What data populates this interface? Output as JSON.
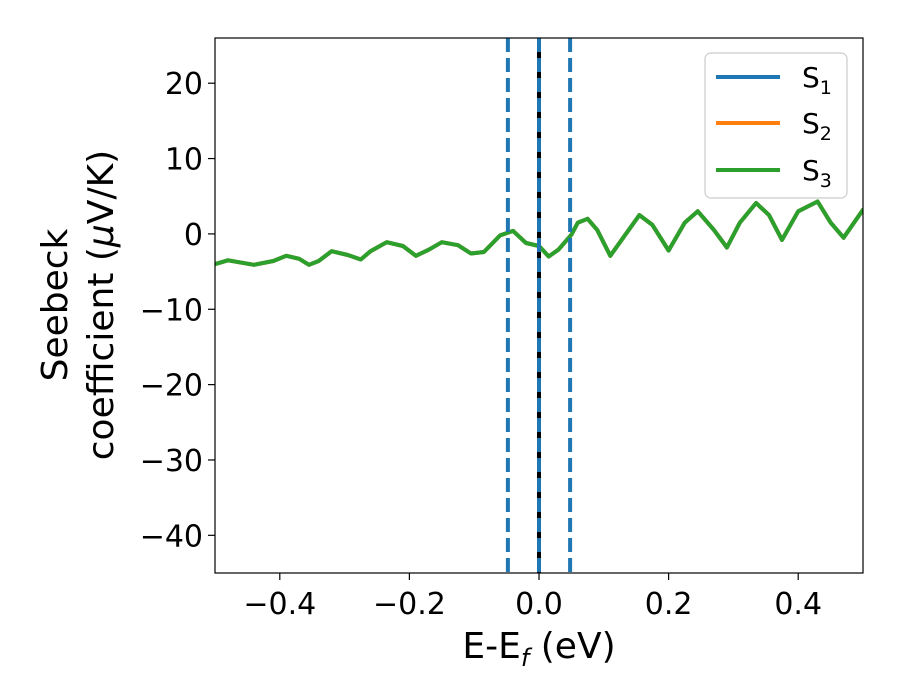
{
  "chart_data": {
    "type": "line",
    "title": "",
    "xlabel": "E-E",
    "xlabel_sub": "f",
    "xlabel_unit": " (eV)",
    "ylabel_line1": "Seebeck",
    "ylabel_line2_a": "coefficient  (",
    "ylabel_mu": "μ",
    "ylabel_line2_b": "V/K)",
    "xlim": [
      -0.5,
      0.5
    ],
    "ylim": [
      -45,
      26
    ],
    "xticks": [
      -0.4,
      -0.2,
      0.0,
      0.2,
      0.4
    ],
    "xtick_labels": [
      "−0.4",
      "−0.2",
      "0.0",
      "0.2",
      "0.4"
    ],
    "yticks": [
      -40,
      -30,
      -20,
      -10,
      0,
      10,
      20
    ],
    "ytick_labels": [
      "−40",
      "−30",
      "−20",
      "−10",
      "0",
      "10",
      "20"
    ],
    "grid": false,
    "legend_position": "top-right",
    "series": [
      {
        "name": "S",
        "sub": "1",
        "color": "#1f77b4"
      },
      {
        "name": "S",
        "sub": "2",
        "color": "#ff7f0e"
      },
      {
        "name": "S",
        "sub": "3",
        "color": "#2ca02c"
      }
    ],
    "curve_points": {
      "x": [
        -0.5,
        -0.48,
        -0.44,
        -0.41,
        -0.39,
        -0.37,
        -0.355,
        -0.34,
        -0.32,
        -0.295,
        -0.275,
        -0.26,
        -0.235,
        -0.21,
        -0.19,
        -0.17,
        -0.15,
        -0.125,
        -0.105,
        -0.085,
        -0.06,
        -0.04,
        -0.02,
        0.0,
        0.015,
        0.03,
        0.05,
        0.06,
        0.075,
        0.09,
        0.11,
        0.13,
        0.155,
        0.175,
        0.2,
        0.225,
        0.245,
        0.27,
        0.29,
        0.31,
        0.335,
        0.355,
        0.375,
        0.4,
        0.43,
        0.45,
        0.47,
        0.5
      ],
      "y": [
        -4.0,
        -3.5,
        -4.1,
        -3.6,
        -2.9,
        -3.3,
        -4.1,
        -3.6,
        -2.3,
        -2.8,
        -3.4,
        -2.3,
        -1.1,
        -1.6,
        -2.9,
        -2.1,
        -1.1,
        -1.5,
        -2.6,
        -2.4,
        -0.2,
        0.4,
        -1.2,
        -1.6,
        -3.0,
        -2.1,
        -0.1,
        1.5,
        2.0,
        0.5,
        -2.9,
        -0.5,
        2.5,
        1.2,
        -2.2,
        1.5,
        3.0,
        0.5,
        -1.8,
        1.5,
        4.1,
        2.5,
        -0.8,
        3.0,
        4.3,
        1.5,
        -0.5,
        3.2
      ]
    },
    "vertical_lines": [
      {
        "x": -0.048,
        "style": "dashed",
        "color": "#1f77b4"
      },
      {
        "x": 0.0,
        "style": "solid",
        "color": "#000000"
      },
      {
        "x": 0.0,
        "style": "dashed",
        "color": "#1f77b4"
      },
      {
        "x": 0.048,
        "style": "dashed",
        "color": "#1f77b4"
      }
    ]
  }
}
